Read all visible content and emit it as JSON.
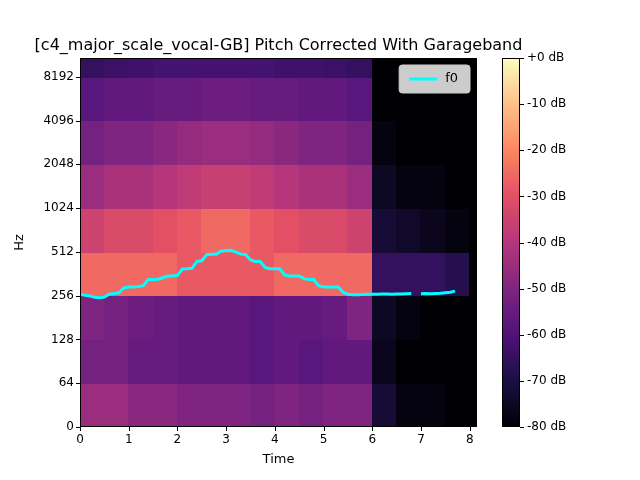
{
  "chart_data": {
    "type": "spectrogram",
    "title": "[c4_major_scale_vocal-GB] Pitch Corrected With Garageband",
    "x_label": "Time",
    "y_label": "Hz",
    "xlim": [
      0,
      8.15
    ],
    "xticks": [
      0,
      1,
      2,
      3,
      4,
      5,
      6,
      7,
      8
    ],
    "ylim": [
      0,
      11025
    ],
    "yticks": [
      0,
      64,
      128,
      256,
      512,
      1024,
      2048,
      4096,
      8192
    ],
    "log": "y",
    "grid": false,
    "legend": "upper right",
    "spectrogram": {
      "time_edges": [
        0,
        0.5,
        1,
        1.5,
        2,
        2.5,
        3,
        3.5,
        4,
        4.5,
        5,
        5.5,
        6,
        6.5,
        7,
        7.5,
        8,
        8.15
      ],
      "freq_edges": [
        0,
        64,
        128,
        256,
        512,
        1024,
        2048,
        4096,
        8192,
        11025
      ],
      "db": [
        [
          -45,
          -45,
          -48,
          -48,
          -50,
          -50,
          -50,
          -52,
          -50,
          -52,
          -50,
          -50,
          -72,
          -78,
          -78,
          -80,
          -80
        ],
        [
          -52,
          -52,
          -55,
          -55,
          -56,
          -56,
          -56,
          -58,
          -56,
          -58,
          -56,
          -56,
          -76,
          -80,
          -80,
          -80,
          -80
        ],
        [
          -50,
          -52,
          -54,
          -55,
          -56,
          -56,
          -56,
          -58,
          -56,
          -56,
          -55,
          -50,
          -75,
          -78,
          -80,
          -80,
          -80
        ],
        [
          -25,
          -25,
          -25,
          -25,
          -28,
          -28,
          -28,
          -28,
          -25,
          -25,
          -25,
          -25,
          -65,
          -65,
          -65,
          -68,
          -80
        ],
        [
          -35,
          -32,
          -32,
          -30,
          -28,
          -25,
          -25,
          -28,
          -30,
          -32,
          -32,
          -35,
          -72,
          -74,
          -76,
          -78,
          -80
        ],
        [
          -45,
          -42,
          -42,
          -40,
          -38,
          -36,
          -36,
          -38,
          -40,
          -42,
          -42,
          -45,
          -75,
          -78,
          -78,
          -80,
          -80
        ],
        [
          -52,
          -50,
          -50,
          -48,
          -46,
          -45,
          -45,
          -46,
          -48,
          -50,
          -50,
          -52,
          -78,
          -80,
          -80,
          -80,
          -80
        ],
        [
          -58,
          -56,
          -56,
          -55,
          -55,
          -54,
          -54,
          -55,
          -55,
          -56,
          -56,
          -58,
          -80,
          -80,
          -80,
          -80,
          -80
        ],
        [
          -65,
          -64,
          -63,
          -62,
          -62,
          -62,
          -62,
          -62,
          -63,
          -63,
          -64,
          -65,
          -80,
          -80,
          -80,
          -80,
          -80
        ]
      ]
    },
    "colorbar": {
      "range": [
        -80,
        0
      ],
      "ticks": [
        {
          "value": 0,
          "label": "+0 dB"
        },
        {
          "value": -10,
          "label": "-10 dB"
        },
        {
          "value": -20,
          "label": "-20 dB"
        },
        {
          "value": -30,
          "label": "-30 dB"
        },
        {
          "value": -40,
          "label": "-40 dB"
        },
        {
          "value": -50,
          "label": "-50 dB"
        },
        {
          "value": -60,
          "label": "-60 dB"
        },
        {
          "value": -70,
          "label": "-70 dB"
        },
        {
          "value": -80,
          "label": "-80 dB"
        }
      ]
    },
    "x": [
      0.0,
      0.1,
      0.2,
      0.3,
      0.4,
      0.5,
      0.6,
      0.7,
      0.8,
      0.9,
      1.0,
      1.1,
      1.2,
      1.3,
      1.4,
      1.5,
      1.6,
      1.7,
      1.8,
      1.9,
      2.0,
      2.1,
      2.2,
      2.3,
      2.4,
      2.5,
      2.6,
      2.7,
      2.8,
      2.9,
      3.0,
      3.1,
      3.2,
      3.3,
      3.4,
      3.5,
      3.6,
      3.7,
      3.8,
      3.9,
      4.0,
      4.1,
      4.2,
      4.3,
      4.4,
      4.5,
      4.6,
      4.7,
      4.8,
      4.9,
      5.0,
      5.1,
      5.2,
      5.3,
      5.4,
      5.5,
      5.6,
      5.7,
      5.8,
      5.9,
      6.0,
      6.1,
      6.2,
      6.3,
      6.4,
      6.5,
      6.6,
      6.7,
      6.8,
      6.9,
      7.0,
      7.1,
      7.2,
      7.3,
      7.4,
      7.5,
      7.6,
      7.7
    ],
    "series": [
      {
        "name": "f0",
        "color": "#00ffff",
        "type": "line",
        "values": [
          262,
          258,
          255,
          250,
          248,
          250,
          262,
          265,
          268,
          290,
          294,
          294,
          296,
          300,
          330,
          330,
          332,
          340,
          349,
          350,
          352,
          390,
          392,
          395,
          440,
          445,
          490,
          494,
          494,
          520,
          523,
          525,
          510,
          494,
          492,
          450,
          440,
          440,
          400,
          392,
          392,
          392,
          355,
          349,
          349,
          349,
          335,
          330,
          330,
          300,
          294,
          294,
          294,
          294,
          270,
          262,
          260,
          260,
          261,
          262,
          262,
          262,
          263,
          263,
          262,
          263,
          263,
          264,
          265,
          null,
          264,
          265,
          264,
          265,
          266,
          268,
          270,
          275
        ]
      }
    ]
  }
}
